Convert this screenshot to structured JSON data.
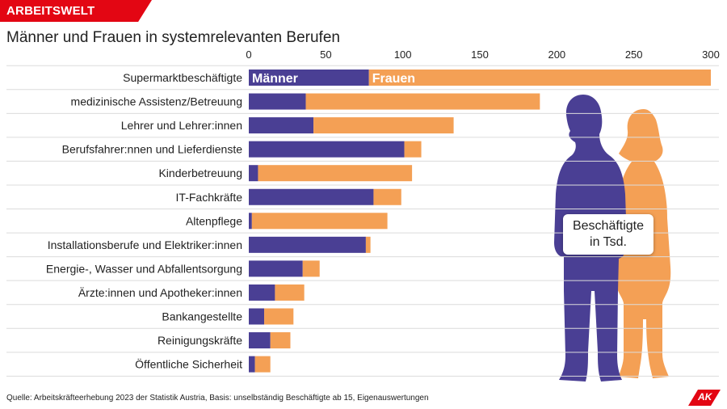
{
  "header": {
    "tag": "ARBEITSWELT",
    "title": "Männer und Frauen in systemrelevanten Berufen"
  },
  "source": "Quelle: Arbeitskräfteerhebung 2023 der Statistik Austria, Basis: unselbständig Beschäftigte ab 15, Eigenauswertungen",
  "callout": {
    "line1": "Beschäftigte",
    "line2": "in Tsd."
  },
  "logo": "AK",
  "colors": {
    "maenner": "#4a3f94",
    "frauen": "#f4a055",
    "brand": "#e30613"
  },
  "chart_data": {
    "type": "bar",
    "orientation": "horizontal",
    "stacked": true,
    "title": "Männer und Frauen in systemrelevanten Berufen",
    "unit": "Beschäftigte in Tsd.",
    "xlim": [
      0,
      300
    ],
    "xticks": [
      0,
      50,
      100,
      150,
      200,
      250,
      300
    ],
    "grid": false,
    "categories": [
      "Supermarktbeschäftigte",
      "medizinische Assistenz/Betreuung",
      "Lehrer und Lehrer:innen",
      "Berufsfahrer:nnen und Lieferdienste",
      "Kinderbetreuung",
      "IT-Fachkräfte",
      "Altenpflege",
      "Installationsberufe und Elektriker:innen",
      "Energie-, Wasser und Abfallentsorgung",
      "Ärzte:innen und Apotheker:innen",
      "Bankangestellte",
      "Reinigungskräfte",
      "Öffentliche Sicherheit"
    ],
    "series": [
      {
        "name": "Männer",
        "values": [
          78,
          37,
          42,
          101,
          6,
          81,
          2,
          76,
          35,
          17,
          10,
          14,
          4
        ]
      },
      {
        "name": "Frauen",
        "values": [
          222,
          152,
          91,
          11,
          100,
          18,
          88,
          3,
          11,
          19,
          19,
          13,
          10
        ]
      }
    ],
    "inline_labels": [
      "Männer",
      "Frauen"
    ]
  }
}
